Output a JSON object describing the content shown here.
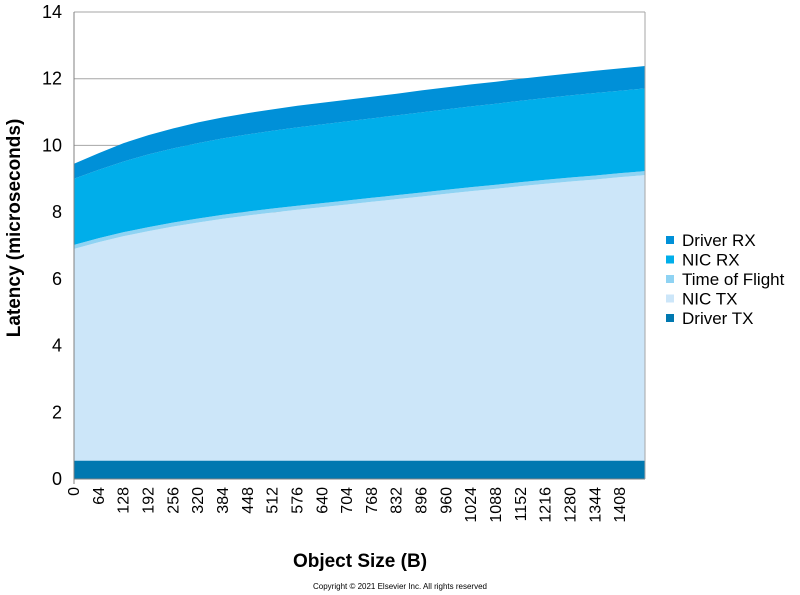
{
  "chart_data": {
    "type": "area",
    "stacked": true,
    "xlabel": "Object Size (B)",
    "ylabel": "Latency (microseconds)",
    "ylim": [
      0,
      14
    ],
    "yticks": [
      0,
      2,
      4,
      6,
      8,
      10,
      12,
      14
    ],
    "xlim": [
      0,
      1472
    ],
    "xticks": [
      0,
      64,
      128,
      192,
      256,
      320,
      384,
      448,
      512,
      576,
      640,
      704,
      768,
      832,
      896,
      960,
      1024,
      1088,
      1152,
      1216,
      1280,
      1344,
      1408
    ],
    "grid": "horizontal",
    "legend_position": "right",
    "x": [
      0,
      64,
      128,
      192,
      256,
      320,
      384,
      448,
      512,
      576,
      640,
      704,
      768,
      832,
      896,
      960,
      1024,
      1088,
      1152,
      1216,
      1280,
      1344,
      1408,
      1472
    ],
    "series": [
      {
        "name": "Driver TX",
        "color": "#0078b0",
        "values": [
          0.55,
          0.55,
          0.55,
          0.55,
          0.55,
          0.55,
          0.55,
          0.55,
          0.55,
          0.55,
          0.55,
          0.55,
          0.55,
          0.55,
          0.55,
          0.55,
          0.55,
          0.55,
          0.55,
          0.55,
          0.55,
          0.55,
          0.55,
          0.55
        ]
      },
      {
        "name": "NIC TX",
        "color": "#cce6f9",
        "values": [
          6.35,
          6.55,
          6.73,
          6.88,
          7.02,
          7.14,
          7.25,
          7.35,
          7.44,
          7.52,
          7.6,
          7.68,
          7.76,
          7.84,
          7.92,
          8.0,
          8.08,
          8.15,
          8.23,
          8.3,
          8.37,
          8.43,
          8.5,
          8.56
        ]
      },
      {
        "name": "Time of Flight",
        "color": "#8fd3f3",
        "values": [
          0.12,
          0.12,
          0.12,
          0.12,
          0.12,
          0.12,
          0.12,
          0.12,
          0.12,
          0.12,
          0.12,
          0.12,
          0.12,
          0.12,
          0.12,
          0.12,
          0.12,
          0.12,
          0.12,
          0.12,
          0.12,
          0.12,
          0.12,
          0.12
        ]
      },
      {
        "name": "NIC RX",
        "color": "#00aeea",
        "values": [
          1.98,
          2.05,
          2.12,
          2.18,
          2.22,
          2.26,
          2.29,
          2.31,
          2.33,
          2.35,
          2.36,
          2.37,
          2.38,
          2.39,
          2.4,
          2.41,
          2.42,
          2.43,
          2.44,
          2.45,
          2.46,
          2.47,
          2.47,
          2.48
        ]
      },
      {
        "name": "Driver RX",
        "color": "#0090d8",
        "values": [
          0.45,
          0.5,
          0.55,
          0.58,
          0.6,
          0.62,
          0.63,
          0.64,
          0.64,
          0.65,
          0.65,
          0.65,
          0.65,
          0.65,
          0.66,
          0.66,
          0.66,
          0.66,
          0.66,
          0.66,
          0.66,
          0.67,
          0.67,
          0.67
        ]
      }
    ],
    "legend_order": [
      "Driver RX",
      "NIC RX",
      "Time of Flight",
      "NIC TX",
      "Driver TX"
    ]
  },
  "footer": {
    "copyright": "Copyright © 2021 Elsevier Inc. All rights reserved"
  }
}
